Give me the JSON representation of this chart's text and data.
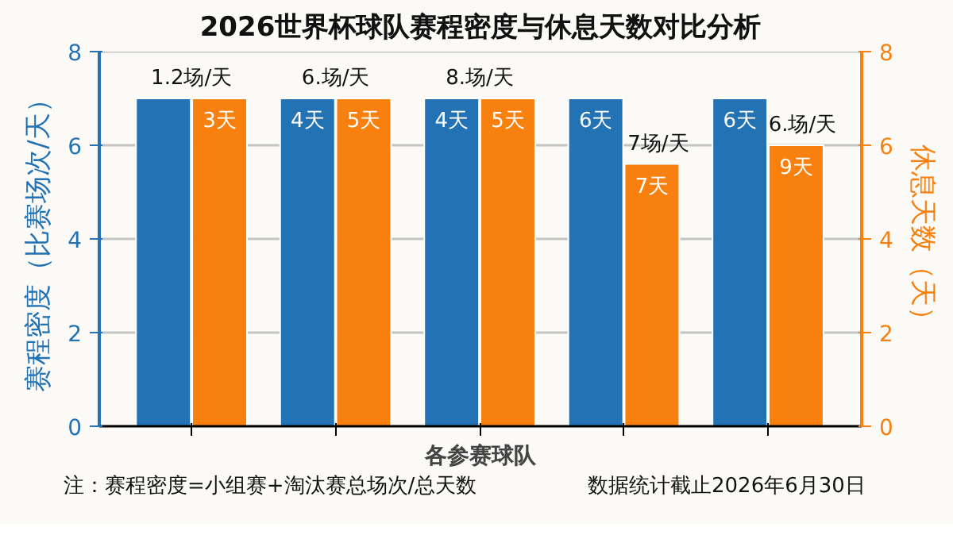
{
  "chart_data": {
    "type": "bar",
    "title": "2026世界杯球队赛程密度与休息天数对比分析",
    "xlabel": "各参赛球队",
    "ylabel": "赛程密度（比赛场次/天）",
    "y2label": "休息天数（天）",
    "categories": [
      null,
      null,
      null,
      null,
      null
    ],
    "series": [
      {
        "color": "#2272b4",
        "values": [
          7,
          7,
          7,
          7,
          7
        ]
      },
      {
        "color": "#f7800f",
        "axis": "y2",
        "values": [
          7,
          7,
          7,
          5.6,
          6
        ]
      }
    ],
    "ylim": [
      0,
      8
    ],
    "yticks": [
      0,
      2,
      4,
      6,
      8
    ],
    "y2lim": [
      0,
      8
    ],
    "y2ticks": [
      0,
      2,
      4,
      6,
      8
    ],
    "grid": "y",
    "annotations": [
      {
        "text": "1.2场/天",
        "y": 7
      },
      {
        "text": "3天",
        "y": 7
      },
      {
        "text": "6.场/天",
        "y": 7
      },
      {
        "text": "4天",
        "y": 7
      },
      {
        "text": "5天",
        "y": 7
      },
      {
        "text": "8.场/天",
        "y": 7
      },
      {
        "text": "4天",
        "y": 7
      },
      {
        "text": "5天",
        "y": 7
      },
      {
        "text": "6天",
        "y": 7
      },
      {
        "text": "7场/天",
        "y": 5.6
      },
      {
        "text": "7天",
        "y": 5.6
      },
      {
        "text": "6天",
        "y": 7
      },
      {
        "text": "6.场/天",
        "y": 6
      },
      {
        "text": "9天",
        "y": 6
      },
      "注：赛程密度=小组赛+淘汰赛总场次/总天数",
      "数据统计截止2026年6月30日"
    ]
  }
}
